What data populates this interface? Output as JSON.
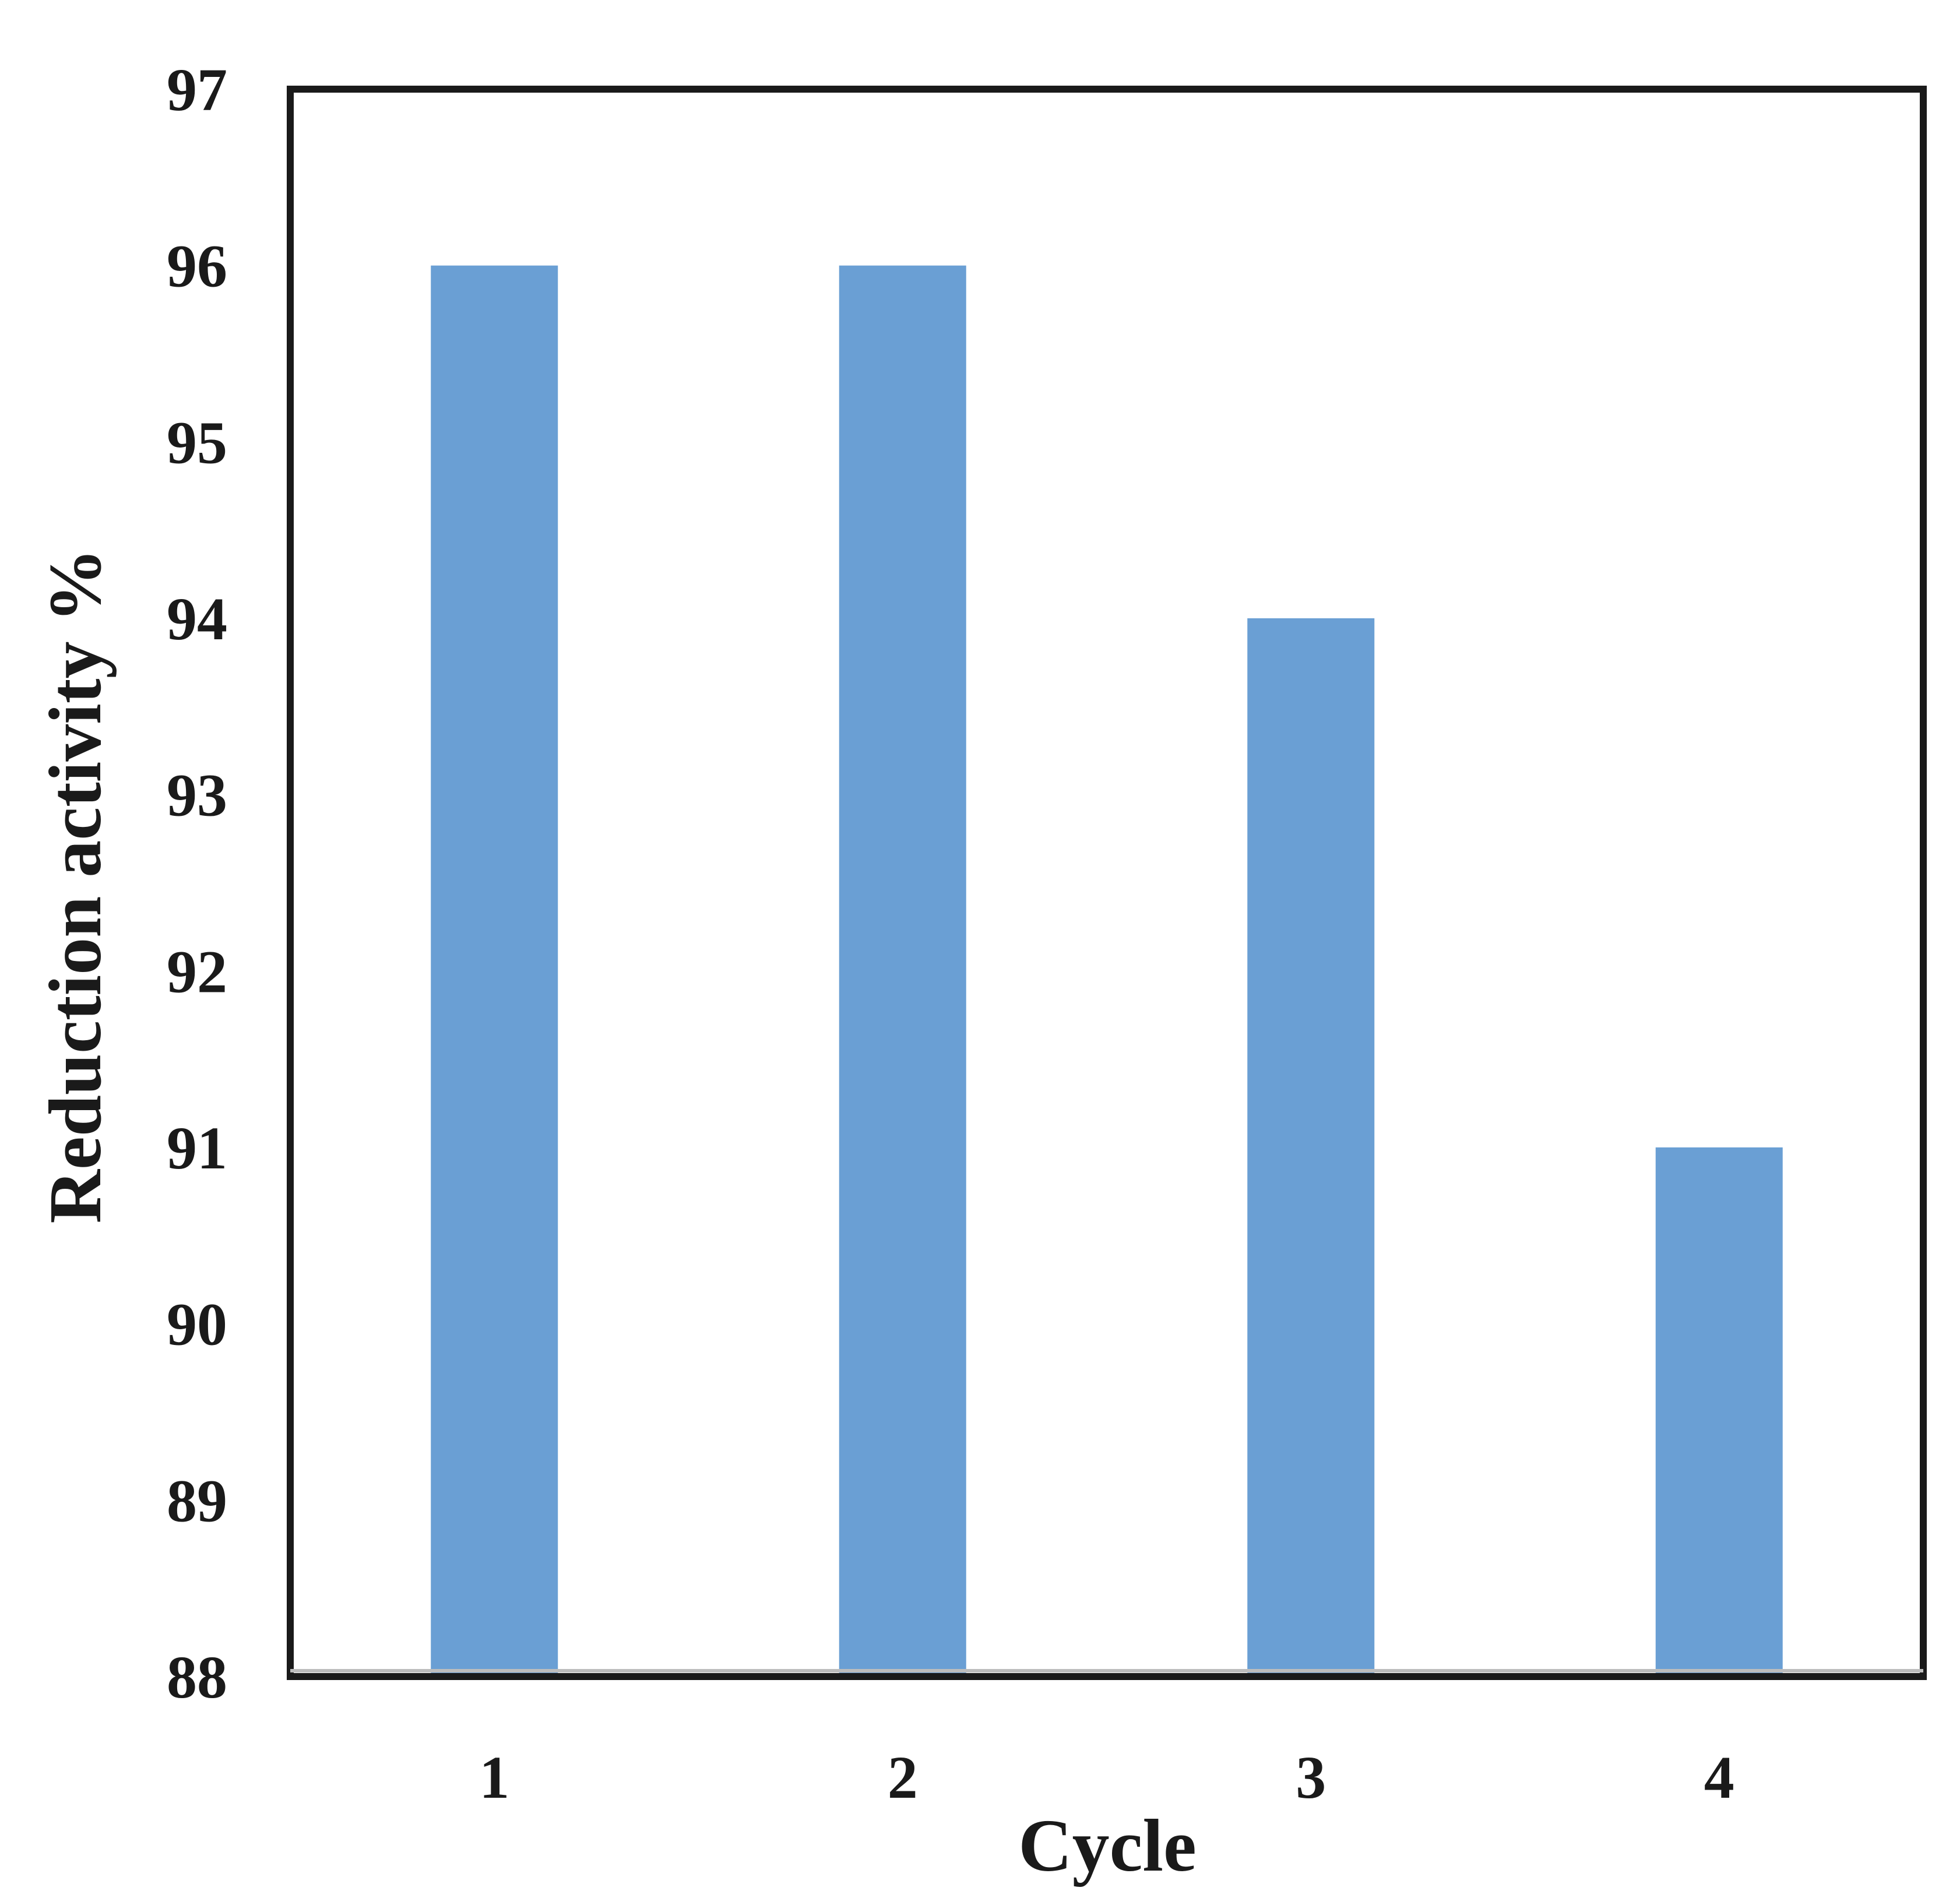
{
  "chart_data": {
    "type": "bar",
    "title": "",
    "xlabel": "Cycle",
    "ylabel": "Reduction activity %",
    "categories": [
      "1",
      "2",
      "3",
      "4"
    ],
    "series": [
      {
        "name": "Reduction activity",
        "values": [
          96,
          96,
          94,
          91
        ]
      }
    ],
    "ylim": [
      88,
      97
    ],
    "yticks": [
      "88",
      "89",
      "90",
      "91",
      "92",
      "93",
      "94",
      "95",
      "96",
      "97"
    ],
    "grid": false,
    "legend": "none",
    "bar_color": "#6a9fd4",
    "frame_color": "#1a1a1a"
  }
}
